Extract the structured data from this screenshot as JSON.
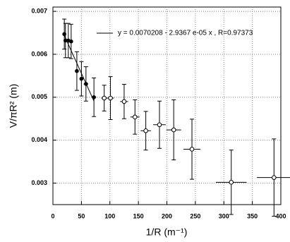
{
  "chart_data": {
    "type": "scatter",
    "x_label": "1/R (m⁻¹)",
    "y_label": "V/πR² (m)",
    "xlim": [
      0,
      400
    ],
    "ylim": [
      0.0025,
      0.0071
    ],
    "xticks": [
      0,
      50,
      100,
      150,
      200,
      250,
      300,
      350,
      400
    ],
    "yticks": [
      0.003,
      0.004,
      0.005,
      0.006,
      0.007
    ],
    "grid": true,
    "series": [
      {
        "marker": "filled",
        "color": "#000000",
        "x": [
          20,
          22,
          27,
          32,
          42,
          50,
          58,
          72
        ],
        "values": [
          0.00647,
          0.00632,
          0.00632,
          0.0063,
          0.00561,
          0.00543,
          0.00531,
          0.005
        ],
        "xerr": [
          2,
          2,
          2,
          3,
          3,
          3,
          4,
          4
        ],
        "yerr": [
          0.00035,
          0.0004,
          0.0004,
          0.0004,
          0.00045,
          0.0004,
          0.0004,
          0.00045
        ]
      },
      {
        "marker": "open-cross",
        "color": "#000000",
        "x": [
          90,
          101,
          125,
          144,
          163,
          187,
          212,
          244,
          313,
          388
        ],
        "values": [
          0.00498,
          0.00498,
          0.0049,
          0.00454,
          0.00422,
          0.00436,
          0.00424,
          0.00379,
          0.00302,
          0.00313
        ],
        "xerr": [
          5,
          6,
          7,
          8,
          9,
          11,
          13,
          15,
          27,
          30
        ],
        "yerr": [
          0.0003,
          0.0005,
          0.0004,
          0.0004,
          0.00045,
          0.00055,
          0.0007,
          0.0007,
          0.00075,
          0.0009
        ]
      },
      {
        "name": "y = 0.0070208 - 2.9367 e-05 x , R=0.97373",
        "marker": "line",
        "color": "#000000",
        "x": [
          20,
          72
        ],
        "values": [
          0.00644,
          0.00491
        ]
      }
    ]
  }
}
